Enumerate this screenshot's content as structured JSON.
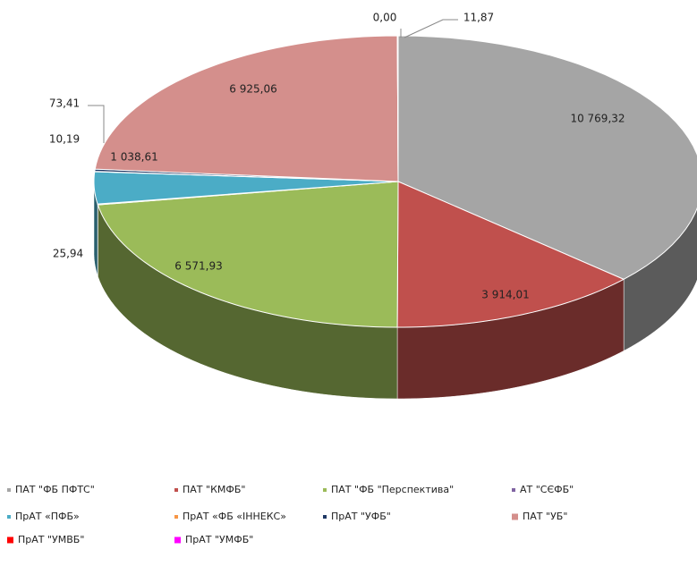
{
  "chart_data": {
    "type": "pie3d",
    "categories": [
      "ПАТ \"ФБ ПФТС\"",
      "ПАТ \"КМФБ\"",
      "ПАТ \"ФБ \"Перспектива\"",
      "АТ \"СЄФБ\"",
      "ПрАТ «ПФБ»",
      "ПрАТ «ФБ «ІННЕКС»",
      "ПрАТ \"УФБ\"",
      "ПАТ \"УБ\"",
      "ПрАТ \"УМВБ\"",
      "ПрАТ \"УМФБ\""
    ],
    "values": [
      10769.32,
      3914.01,
      6571.93,
      25.94,
      1038.61,
      10.19,
      73.41,
      6925.06,
      0.0,
      11.87
    ],
    "value_labels": [
      "10 769,32",
      "3 914,01",
      "6 571,93",
      "25,94",
      "1 038,61",
      "10,19",
      "73,41",
      "6 925,06",
      "0,00",
      "11,87"
    ],
    "colors": [
      "#a5a5a5",
      "#c0504d",
      "#9bbb59",
      "#8064a2",
      "#4bacc6",
      "#f79646",
      "#1f3864",
      "#d48f8c",
      "#ff0000",
      "#ff00ff"
    ],
    "legend": "bottom"
  }
}
